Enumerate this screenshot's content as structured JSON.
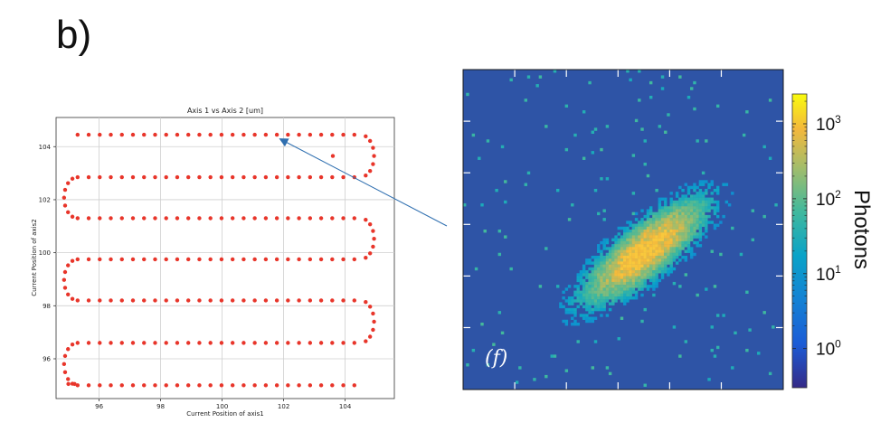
{
  "panel_label": "b)",
  "chart_data": [
    {
      "type": "scatter",
      "title": "Axis 1 vs Axis 2 [um]",
      "xlabel": "Current Position of axis1",
      "ylabel": "Current Position of axis2",
      "xlim": [
        94.6,
        105.6
      ],
      "ylim": [
        94.5,
        105.1
      ],
      "xticks": [
        96,
        98,
        100,
        102,
        104
      ],
      "yticks": [
        96,
        98,
        100,
        102,
        104
      ],
      "grid": true,
      "marker_color": "#e8352a",
      "raster_rows": [
        104.45,
        102.85,
        101.3,
        99.75,
        98.2,
        96.6,
        95.0
      ],
      "row_x_range": [
        95.3,
        104.5
      ],
      "turn_radius": 0.8,
      "start_points": [
        [
          95.0,
          95.05
        ],
        [
          95.2,
          95.05
        ]
      ],
      "stray_points": [
        [
          103.6,
          103.65
        ]
      ]
    },
    {
      "type": "heatmap",
      "panel_tag": "(f)",
      "colorbar": {
        "label": "Photons",
        "scale": "log",
        "tick_bases": [
          "10",
          "10",
          "10",
          "10"
        ],
        "tick_exponents": [
          "3",
          "2",
          "1",
          "0"
        ],
        "tick_values": [
          1000,
          100,
          10,
          1
        ],
        "colormap": "parula",
        "range": [
          0.3,
          2500
        ]
      },
      "background_color": "#2e54a6",
      "peak_color": "#f9c23c",
      "distribution": "elongated 2D gaussian along the diagonal, upper-right to lower-left"
    }
  ],
  "annotation": {
    "arrow_color": "#2f6fb0",
    "description_points": "arrow from heatmap left edge to scatter upper row"
  }
}
